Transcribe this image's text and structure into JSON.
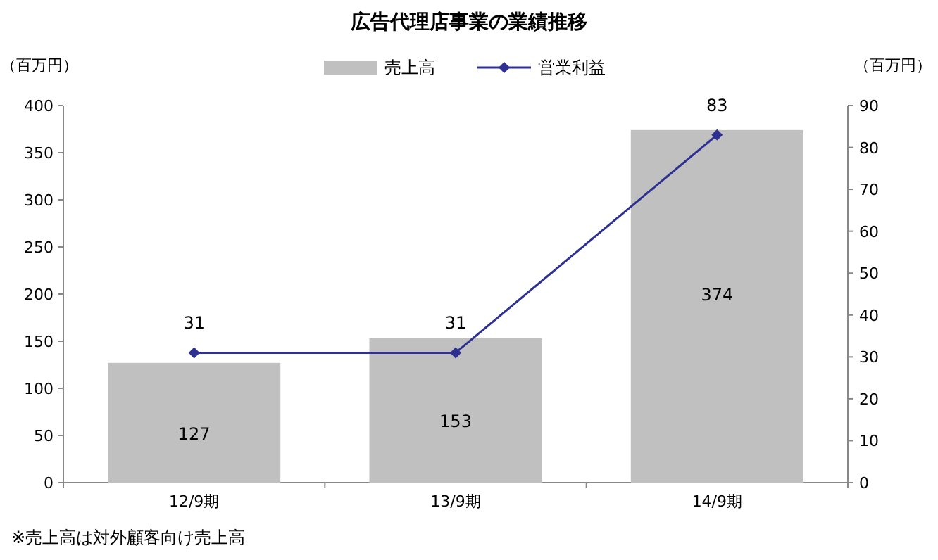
{
  "chart_data": {
    "type": "bar",
    "title": "広告代理店事業の業績推移",
    "ylabel": "（百万円）",
    "y2label": "（百万円）",
    "categories": [
      "12/9期",
      "13/9期",
      "14/9期"
    ],
    "series": [
      {
        "name": "売上高",
        "color": "#c0c0c0",
        "values": [
          127,
          153,
          374
        ]
      },
      {
        "name": "営業利益",
        "type": "line",
        "axis": "y2",
        "color": "#2e3192",
        "values": [
          31,
          31,
          83
        ]
      }
    ],
    "ylim": [
      0,
      400
    ],
    "yticks": [
      0,
      50,
      100,
      150,
      200,
      250,
      300,
      350,
      400
    ],
    "y2lim": [
      0,
      90
    ],
    "y2ticks": [
      0,
      10,
      20,
      30,
      40,
      50,
      60,
      70,
      80,
      90
    ],
    "marker": "diamond",
    "line_style": "solid",
    "data_labels": true,
    "legend": "top",
    "grid": false,
    "annotations": [
      "※売上高は対外顧客向け売上高"
    ]
  }
}
